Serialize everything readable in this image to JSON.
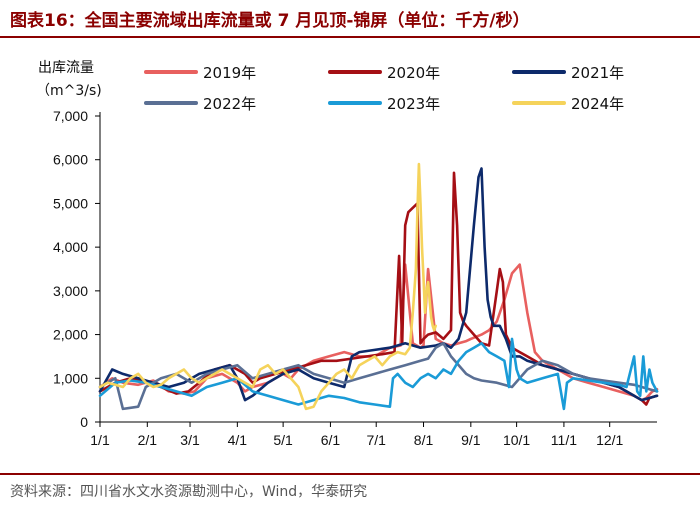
{
  "title": "图表16：全国主要流域出库流量或 7 月见顶-锦屏（单位：千方/秒）",
  "source": "资料来源：四川省水文水资源勘测中心，Wind，华泰研究",
  "colors": {
    "s2019": "#e8605f",
    "s2020": "#a50f15",
    "s2021": "#0d2a6b",
    "s2022": "#5a6f94",
    "s2023": "#1a9bd7",
    "s2024": "#f5d35b",
    "title": "#8b0000"
  },
  "chart_data": {
    "type": "line",
    "title": "",
    "ylabel_line1": "出库流量",
    "ylabel_line2": "（m^3/s)",
    "xlabel": "",
    "ylim": [
      0,
      7000
    ],
    "xlim": [
      0,
      365
    ],
    "yticks": [
      0,
      1000,
      2000,
      3000,
      4000,
      5000,
      6000,
      7000
    ],
    "ytick_labels": [
      "0",
      "1,000",
      "2,000",
      "3,000",
      "4,000",
      "5,000",
      "6,000",
      "7,000"
    ],
    "xticks": [
      0,
      31,
      59,
      90,
      120,
      151,
      181,
      212,
      243,
      273,
      304,
      334
    ],
    "xtick_labels": [
      "1/1",
      "2/1",
      "3/1",
      "4/1",
      "5/1",
      "6/1",
      "7/1",
      "8/1",
      "9/1",
      "10/1",
      "11/1",
      "12/1"
    ],
    "legend": [
      "2019年",
      "2020年",
      "2021年",
      "2022年",
      "2023年",
      "2024年"
    ],
    "series": [
      {
        "name": "2019年",
        "key": "s2019",
        "x": [
          0,
          8,
          15,
          25,
          35,
          45,
          55,
          62,
          70,
          80,
          90,
          95,
          100,
          110,
          120,
          125,
          130,
          140,
          150,
          160,
          170,
          180,
          190,
          197,
          200,
          205,
          210,
          212,
          215,
          220,
          225,
          230,
          235,
          240,
          243,
          250,
          255,
          260,
          265,
          270,
          275,
          280,
          285,
          290,
          295,
          300,
          305,
          310,
          320,
          330,
          340,
          350,
          355,
          358,
          362,
          365
        ],
        "values": [
          800,
          1000,
          900,
          850,
          950,
          700,
          650,
          700,
          1000,
          1100,
          900,
          700,
          800,
          900,
          1100,
          1000,
          1200,
          1400,
          1500,
          1600,
          1500,
          1500,
          1700,
          1750,
          3600,
          1800,
          1700,
          1750,
          3500,
          1900,
          1800,
          1750,
          1800,
          1850,
          1900,
          2000,
          2100,
          2300,
          2800,
          3400,
          3600,
          2500,
          1600,
          1400,
          1300,
          1200,
          1100,
          1000,
          900,
          800,
          700,
          600,
          500,
          550,
          700,
          750
        ]
      },
      {
        "name": "2020年",
        "key": "s2020",
        "x": [
          0,
          10,
          20,
          30,
          40,
          50,
          58,
          65,
          75,
          85,
          95,
          100,
          105,
          115,
          125,
          135,
          145,
          155,
          165,
          175,
          185,
          193,
          196,
          198,
          200,
          202,
          205,
          208,
          210,
          212,
          215,
          220,
          225,
          230,
          232,
          234,
          236,
          238,
          240,
          245,
          250,
          255,
          260,
          262,
          264,
          266,
          270,
          275,
          280,
          285,
          290,
          300,
          310,
          320,
          330,
          340,
          345,
          350,
          355,
          358,
          360,
          365
        ],
        "values": [
          700,
          900,
          1000,
          900,
          800,
          650,
          700,
          900,
          1200,
          1300,
          1100,
          900,
          1000,
          1100,
          1200,
          1300,
          1400,
          1400,
          1450,
          1500,
          1550,
          1600,
          3800,
          1800,
          4500,
          4800,
          4900,
          5000,
          1800,
          1900,
          2000,
          2050,
          1900,
          2100,
          5700,
          4500,
          2500,
          2300,
          2200,
          2000,
          1800,
          1750,
          3000,
          3500,
          3200,
          2000,
          1700,
          1600,
          1500,
          1400,
          1300,
          1200,
          1100,
          1000,
          900,
          800,
          700,
          600,
          500,
          400,
          550,
          600
        ]
      },
      {
        "name": "2021年",
        "key": "s2021",
        "x": [
          0,
          8,
          15,
          25,
          35,
          45,
          55,
          65,
          75,
          85,
          90,
          95,
          100,
          110,
          120,
          130,
          140,
          150,
          160,
          165,
          170,
          180,
          190,
          200,
          210,
          220,
          225,
          230,
          235,
          240,
          245,
          248,
          250,
          252,
          254,
          256,
          258,
          262,
          266,
          270,
          275,
          280,
          290,
          300,
          310,
          320,
          330,
          340,
          345,
          350,
          355,
          360,
          365
        ],
        "values": [
          700,
          1200,
          1100,
          1000,
          900,
          800,
          900,
          1100,
          1200,
          1300,
          1000,
          500,
          600,
          900,
          1100,
          1200,
          1000,
          900,
          800,
          1500,
          1600,
          1650,
          1700,
          1800,
          1700,
          1750,
          1800,
          1700,
          1900,
          2500,
          4500,
          5600,
          5800,
          4000,
          2800,
          2400,
          2200,
          2200,
          1900,
          1500,
          1500,
          1400,
          1300,
          1200,
          1100,
          1000,
          900,
          800,
          700,
          600,
          500,
          550,
          600
        ]
      },
      {
        "name": "2022年",
        "key": "s2022",
        "x": [
          0,
          10,
          15,
          25,
          30,
          40,
          50,
          60,
          70,
          80,
          90,
          100,
          110,
          120,
          130,
          140,
          150,
          160,
          170,
          180,
          190,
          200,
          210,
          215,
          220,
          225,
          230,
          240,
          245,
          250,
          260,
          270,
          280,
          290,
          300,
          310,
          320,
          330,
          340,
          350,
          355,
          360,
          365
        ],
        "values": [
          800,
          1000,
          300,
          350,
          800,
          1000,
          1100,
          900,
          1100,
          1200,
          1300,
          1000,
          1100,
          1200,
          1300,
          1100,
          1000,
          900,
          1000,
          1100,
          1200,
          1300,
          1400,
          1450,
          1700,
          1800,
          1500,
          1100,
          1000,
          950,
          900,
          800,
          1200,
          1400,
          1300,
          1100,
          1000,
          950,
          900,
          850,
          800,
          750,
          700
        ]
      },
      {
        "name": "2023年",
        "key": "s2023",
        "x": [
          0,
          10,
          20,
          30,
          40,
          50,
          60,
          70,
          80,
          90,
          100,
          110,
          120,
          130,
          140,
          150,
          160,
          170,
          180,
          190,
          192,
          195,
          200,
          205,
          210,
          215,
          220,
          225,
          230,
          235,
          240,
          245,
          250,
          255,
          260,
          265,
          268,
          270,
          273,
          275,
          280,
          290,
          300,
          304,
          306,
          310,
          320,
          330,
          340,
          345,
          350,
          352,
          354,
          356,
          358,
          360,
          362,
          365
        ],
        "values": [
          600,
          900,
          950,
          900,
          800,
          700,
          600,
          800,
          900,
          1000,
          700,
          600,
          500,
          400,
          500,
          600,
          550,
          450,
          400,
          350,
          1000,
          1100,
          900,
          800,
          1000,
          1100,
          1000,
          1200,
          1100,
          1400,
          1600,
          1700,
          1800,
          1600,
          1500,
          1400,
          800,
          1900,
          1200,
          1000,
          900,
          1000,
          1100,
          300,
          900,
          1000,
          950,
          900,
          850,
          800,
          1500,
          700,
          600,
          1500,
          700,
          1200,
          900,
          700
        ]
      },
      {
        "name": "2024年",
        "key": "s2024",
        "x": [
          0,
          5,
          10,
          15,
          20,
          25,
          30,
          35,
          40,
          45,
          50,
          55,
          60,
          65,
          70,
          75,
          80,
          85,
          90,
          95,
          100,
          105,
          110,
          115,
          120,
          125,
          130,
          135,
          140,
          145,
          150,
          155,
          160,
          165,
          170,
          175,
          180,
          185,
          190,
          195,
          200,
          203,
          205,
          207,
          208,
          209,
          210,
          211,
          212,
          213,
          214,
          215,
          216,
          217,
          218,
          219,
          220
        ],
        "values": [
          800,
          900,
          850,
          800,
          1000,
          1100,
          900,
          800,
          850,
          1000,
          1100,
          1200,
          1000,
          900,
          1000,
          1100,
          1200,
          1100,
          1000,
          900,
          800,
          1200,
          1300,
          1100,
          1200,
          1000,
          800,
          300,
          350,
          700,
          900,
          1100,
          1200,
          1000,
          1300,
          1400,
          1500,
          1300,
          1500,
          1600,
          1550,
          1700,
          2500,
          3500,
          4800,
          5900,
          5000,
          4000,
          3300,
          2500,
          3000,
          3200,
          2800,
          2400,
          2200,
          2100,
          2200
        ]
      }
    ]
  }
}
